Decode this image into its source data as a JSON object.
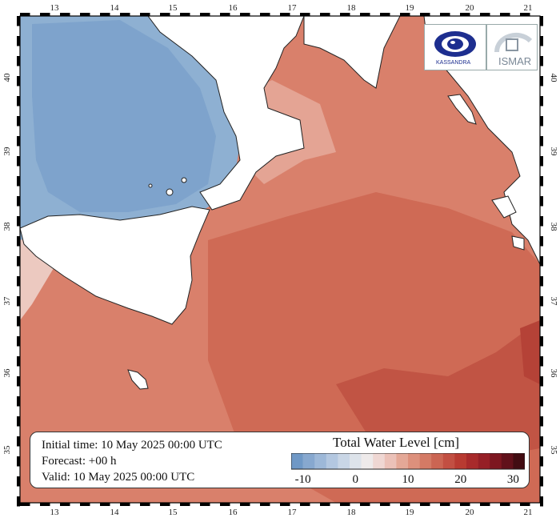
{
  "map": {
    "lon_ticks": [
      "13",
      "14",
      "15",
      "16",
      "17",
      "18",
      "19",
      "20",
      "21"
    ],
    "lat_ticks": [
      "35",
      "36",
      "37",
      "38",
      "39",
      "40"
    ]
  },
  "info": {
    "initial_time": "Initial time: 10 May 2025 00:00 UTC",
    "forecast": "Forecast: +00 h",
    "valid": "Valid: 10 May 2025 00:00 UTC"
  },
  "legend": {
    "title": "Total Water Level [cm]",
    "colors": [
      "#6f98c6",
      "#87a8cf",
      "#9db8d8",
      "#b3c7e0",
      "#c9d6e6",
      "#dde3ea",
      "#eeeaea",
      "#efd7d3",
      "#ebc1b8",
      "#e4a897",
      "#dd907c",
      "#d47a65",
      "#cb6553",
      "#c24f42",
      "#b83a31",
      "#a82a2b",
      "#961f26",
      "#7d1620",
      "#61101a",
      "#420c12"
    ],
    "tick_labels": [
      "-10",
      "0",
      "10",
      "20",
      "30"
    ]
  },
  "logos": {
    "left_caption": "KASSANDRA",
    "right_caption": "ISMAR"
  }
}
